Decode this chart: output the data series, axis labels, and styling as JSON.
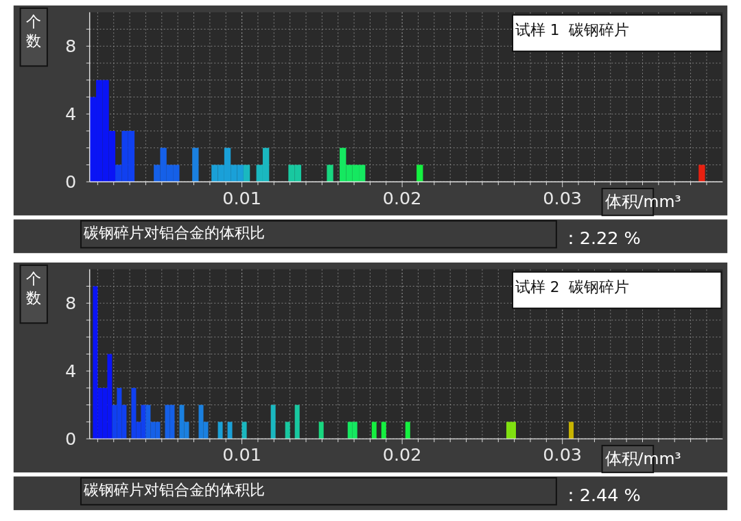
{
  "chart_data": [
    {
      "type": "histogram",
      "title": "试样 1  碳钢碎片",
      "ylabel": "个数",
      "xlabel": "体积/mm³",
      "bins": [
        0.0005,
        0.0009,
        0.0013,
        0.0017,
        0.0021,
        0.0025,
        0.0029,
        0.0033,
        0.0037,
        0.0041,
        0.0045,
        0.0049,
        0.0053,
        0.0057,
        0.0061,
        0.0065,
        0.0069,
        0.0073,
        0.0077,
        0.0081,
        0.0085,
        0.0089,
        0.0093,
        0.0097,
        0.0101,
        0.0105,
        0.0109,
        0.0113,
        0.0117,
        0.0121,
        0.0125,
        0.0129,
        0.0133,
        0.0137,
        0.0141,
        0.0145,
        0.0149,
        0.0153,
        0.0157,
        0.0161,
        0.0165,
        0.0169,
        0.0173,
        0.0177,
        0.0181,
        0.0185,
        0.0189,
        0.0193,
        0.0197,
        0.0201,
        0.0205,
        0.0209,
        0.0213,
        0.0217,
        0.0221,
        0.0225,
        0.0229,
        0.0233,
        0.0237,
        0.0241,
        0.0245,
        0.0249,
        0.0253,
        0.0257,
        0.0261,
        0.0265,
        0.0269,
        0.0273,
        0.0277,
        0.0281,
        0.0285,
        0.0289,
        0.0293,
        0.0297,
        0.0301,
        0.0305,
        0.0309,
        0.0313,
        0.0317,
        0.0321,
        0.0325,
        0.0329,
        0.0333,
        0.0337,
        0.0341,
        0.0345,
        0.0349,
        0.0353,
        0.0357,
        0.0361,
        0.0365,
        0.0369,
        0.0373,
        0.0377,
        0.0381,
        0.0385,
        0.0389
      ],
      "values": [
        5,
        6,
        6,
        3,
        1,
        3,
        3,
        0,
        0,
        0,
        1,
        2,
        1,
        1,
        0,
        0,
        2,
        0,
        0,
        1,
        1,
        2,
        1,
        1,
        1,
        0,
        1,
        2,
        0,
        0,
        0,
        1,
        1,
        0,
        0,
        0,
        0,
        1,
        0,
        2,
        1,
        1,
        1,
        0,
        0,
        0,
        0,
        0,
        0,
        0,
        0,
        1,
        0,
        0,
        0,
        0,
        0,
        0,
        0,
        0,
        0,
        0,
        0,
        0,
        0,
        0,
        0,
        0,
        0,
        0,
        0,
        0,
        0,
        0,
        0,
        0,
        0,
        0,
        0,
        0,
        0,
        0,
        0,
        0,
        0,
        0,
        0,
        0,
        0,
        0,
        0,
        0,
        0,
        0,
        0,
        1
      ],
      "colors": [
        "#0a14f5",
        "#0a14f5",
        "#0a14f5",
        "#0a14f5",
        "#1040f0",
        "#1040f0",
        "#1040f0",
        null,
        null,
        null,
        "#1560e8",
        "#1560e8",
        "#1560e8",
        "#1560e8",
        null,
        null,
        "#1a80e0",
        null,
        null,
        "#1aa0d8",
        "#1aa0d8",
        "#1aa0d8",
        "#1aa0d8",
        "#1aa0d8",
        "#1ab8c0",
        null,
        "#1ab8c0",
        "#1ab8c0",
        null,
        null,
        null,
        "#18c8a0",
        "#18c8a0",
        null,
        null,
        null,
        null,
        "#18d880",
        null,
        "#15e860",
        "#15e860",
        "#15e860",
        "#15e860",
        null,
        null,
        null,
        null,
        null,
        null,
        null,
        null,
        "#15f040",
        null,
        null,
        null,
        null,
        null,
        null,
        null,
        null,
        null,
        null,
        null,
        null,
        null,
        null,
        null,
        null,
        null,
        null,
        null,
        null,
        null,
        null,
        null,
        null,
        null,
        null,
        null,
        null,
        null,
        null,
        null,
        null,
        null,
        null,
        null,
        null,
        null,
        null,
        null,
        null,
        null,
        null,
        null,
        "#e82010"
      ],
      "xlim": [
        0.0005,
        0.04
      ],
      "ylim": [
        0,
        10
      ],
      "xticks": [
        {
          "value": 0.001,
          "label": null
        },
        {
          "value": 0.002,
          "label": null
        },
        {
          "value": 0.003,
          "label": null
        },
        {
          "value": 0.004,
          "label": null
        },
        {
          "value": 0.005,
          "label": null
        },
        {
          "value": 0.006,
          "label": null
        },
        {
          "value": 0.007,
          "label": null
        },
        {
          "value": 0.008,
          "label": null
        },
        {
          "value": 0.009,
          "label": null
        },
        0.01,
        {
          "value": 0.011,
          "label": null
        },
        {
          "value": 0.012,
          "label": null
        },
        {
          "value": 0.013,
          "label": null
        },
        {
          "value": 0.014,
          "label": null
        },
        {
          "value": 0.015,
          "label": null
        },
        {
          "value": 0.016,
          "label": null
        },
        {
          "value": 0.017,
          "label": null
        },
        {
          "value": 0.018,
          "label": null
        },
        {
          "value": 0.019,
          "label": null
        },
        0.02,
        {
          "value": 0.021,
          "label": null
        },
        {
          "value": 0.022,
          "label": null
        },
        {
          "value": 0.023,
          "label": null
        },
        {
          "value": 0.024,
          "label": null
        },
        {
          "value": 0.025,
          "label": null
        },
        {
          "value": 0.026,
          "label": null
        },
        {
          "value": 0.027,
          "label": null
        },
        {
          "value": 0.028,
          "label": null
        },
        {
          "value": 0.029,
          "label": null
        },
        0.03,
        {
          "value": 0.031,
          "label": null
        },
        {
          "value": 0.032,
          "label": null
        },
        {
          "value": 0.033,
          "label": null
        },
        {
          "value": 0.034,
          "label": null
        },
        {
          "value": 0.035,
          "label": null
        },
        {
          "value": 0.036,
          "label": null
        },
        {
          "value": 0.037,
          "label": null
        },
        {
          "value": 0.038,
          "label": null
        },
        {
          "value": 0.039,
          "label": null
        }
      ],
      "yticks": [
        0,
        {
          "value": 1,
          "label": null
        },
        {
          "value": 2,
          "label": null
        },
        {
          "value": 3,
          "label": null
        },
        4,
        {
          "value": 5,
          "label": null
        },
        {
          "value": 6,
          "label": null
        },
        {
          "value": 7,
          "label": null
        },
        8,
        {
          "value": 9,
          "label": null
        }
      ],
      "grid": true,
      "annotations": [
        "碳钢碎片对铝合金的体积比",
        "：2.22 %"
      ]
    },
    {
      "type": "histogram",
      "title": "试样 2  碳钢碎片",
      "ylabel": "个数",
      "xlabel": "体积/mm³",
      "bins": [
        0.0007,
        0.001,
        0.0013,
        0.0016,
        0.0019,
        0.0022,
        0.0025,
        0.0028,
        0.0031,
        0.0034,
        0.0037,
        0.004,
        0.0043,
        0.0046,
        0.0049,
        0.0052,
        0.0055,
        0.0058,
        0.0061,
        0.0064,
        0.0067,
        0.007,
        0.0073,
        0.0076,
        0.0079,
        0.0082,
        0.0085,
        0.0088,
        0.0091,
        0.0094,
        0.0097,
        0.01,
        0.0103,
        0.0106,
        0.0109,
        0.0112,
        0.0115,
        0.0118,
        0.0121,
        0.0124,
        0.0127,
        0.013,
        0.0133,
        0.0136,
        0.0139,
        0.0142,
        0.0145,
        0.0148,
        0.0151,
        0.0154,
        0.0157,
        0.016,
        0.0163,
        0.0166,
        0.0169,
        0.0172,
        0.0175,
        0.0178,
        0.0181,
        0.0184,
        0.0187,
        0.019,
        0.0193,
        0.0196,
        0.0199,
        0.0202,
        0.0205,
        0.0208,
        0.0211,
        0.0214,
        0.0217,
        0.022,
        0.0223,
        0.0226,
        0.0229,
        0.0232,
        0.0235,
        0.0238,
        0.0241,
        0.0244,
        0.0247,
        0.025,
        0.0253,
        0.0256,
        0.0259,
        0.0262,
        0.0265,
        0.0268,
        0.0271,
        0.0274,
        0.0277,
        0.028,
        0.0283,
        0.0286,
        0.0289,
        0.0292,
        0.0295,
        0.0298,
        0.0301,
        0.0304,
        0.0307
      ],
      "values": [
        9,
        3,
        3,
        5,
        2,
        3,
        2,
        0,
        3,
        1,
        2,
        2,
        1,
        1,
        0,
        2,
        2,
        0,
        2,
        1,
        0,
        0,
        2,
        1,
        0,
        0,
        1,
        0,
        1,
        0,
        0,
        1,
        0,
        0,
        0,
        0,
        0,
        2,
        0,
        0,
        1,
        0,
        2,
        0,
        0,
        0,
        0,
        1,
        0,
        0,
        0,
        0,
        0,
        1,
        1,
        0,
        0,
        0,
        1,
        0,
        1,
        0,
        0,
        0,
        0,
        1,
        0,
        0,
        0,
        0,
        0,
        0,
        0,
        0,
        0,
        0,
        0,
        0,
        0,
        0,
        0,
        0,
        0,
        0,
        0,
        0,
        1,
        1,
        0,
        0,
        0,
        0,
        0,
        0,
        0,
        0,
        0,
        0,
        0,
        1
      ],
      "colors": [
        "#0a14f5",
        "#0a14f5",
        "#0a14f5",
        "#0a14f5",
        "#1040f0",
        "#1040f0",
        "#1040f0",
        null,
        "#1040f0",
        "#1040f0",
        "#1040f0",
        "#1560e8",
        "#1560e8",
        "#1560e8",
        null,
        "#1560e8",
        "#1560e8",
        null,
        "#1a80e0",
        "#1a80e0",
        null,
        null,
        "#1a80e0",
        "#1a80e0",
        null,
        null,
        "#1aa0d8",
        null,
        "#1aa0d8",
        null,
        null,
        "#1ab8c0",
        null,
        null,
        null,
        null,
        null,
        "#1ab8c0",
        null,
        null,
        "#18c8a0",
        null,
        "#18c8a0",
        null,
        null,
        null,
        null,
        "#18d880",
        null,
        null,
        null,
        null,
        null,
        "#15e860",
        "#15e860",
        null,
        null,
        null,
        "#15f040",
        null,
        "#15f040",
        null,
        null,
        null,
        null,
        "#15f040",
        null,
        null,
        null,
        null,
        null,
        null,
        null,
        null,
        null,
        null,
        null,
        null,
        null,
        null,
        null,
        null,
        null,
        null,
        null,
        null,
        "#80e010",
        "#80e010",
        null,
        null,
        null,
        null,
        null,
        null,
        null,
        null,
        null,
        null,
        null,
        "#c8b400"
      ],
      "xlim": [
        0.0005,
        0.04
      ],
      "ylim": [
        0,
        10
      ],
      "xticks": [
        {
          "value": 0.001,
          "label": null
        },
        {
          "value": 0.002,
          "label": null
        },
        {
          "value": 0.003,
          "label": null
        },
        {
          "value": 0.004,
          "label": null
        },
        {
          "value": 0.005,
          "label": null
        },
        {
          "value": 0.006,
          "label": null
        },
        {
          "value": 0.007,
          "label": null
        },
        {
          "value": 0.008,
          "label": null
        },
        {
          "value": 0.009,
          "label": null
        },
        0.01,
        {
          "value": 0.011,
          "label": null
        },
        {
          "value": 0.012,
          "label": null
        },
        {
          "value": 0.013,
          "label": null
        },
        {
          "value": 0.014,
          "label": null
        },
        {
          "value": 0.015,
          "label": null
        },
        {
          "value": 0.016,
          "label": null
        },
        {
          "value": 0.017,
          "label": null
        },
        {
          "value": 0.018,
          "label": null
        },
        {
          "value": 0.019,
          "label": null
        },
        0.02,
        {
          "value": 0.021,
          "label": null
        },
        {
          "value": 0.022,
          "label": null
        },
        {
          "value": 0.023,
          "label": null
        },
        {
          "value": 0.024,
          "label": null
        },
        {
          "value": 0.025,
          "label": null
        },
        {
          "value": 0.026,
          "label": null
        },
        {
          "value": 0.027,
          "label": null
        },
        {
          "value": 0.028,
          "label": null
        },
        {
          "value": 0.029,
          "label": null
        },
        0.03,
        {
          "value": 0.031,
          "label": null
        },
        {
          "value": 0.032,
          "label": null
        },
        {
          "value": 0.033,
          "label": null
        },
        {
          "value": 0.034,
          "label": null
        },
        {
          "value": 0.035,
          "label": null
        },
        {
          "value": 0.036,
          "label": null
        },
        {
          "value": 0.037,
          "label": null
        },
        {
          "value": 0.038,
          "label": null
        },
        {
          "value": 0.039,
          "label": null
        }
      ],
      "yticks": [
        0,
        {
          "value": 1,
          "label": null
        },
        {
          "value": 2,
          "label": null
        },
        {
          "value": 3,
          "label": null
        },
        4,
        {
          "value": 5,
          "label": null
        },
        {
          "value": 6,
          "label": null
        },
        {
          "value": 7,
          "label": null
        },
        8,
        {
          "value": 9,
          "label": null
        }
      ],
      "grid": true,
      "annotations": [
        "碳钢碎片对铝合金的体积比",
        "：2.44 %"
      ]
    }
  ]
}
